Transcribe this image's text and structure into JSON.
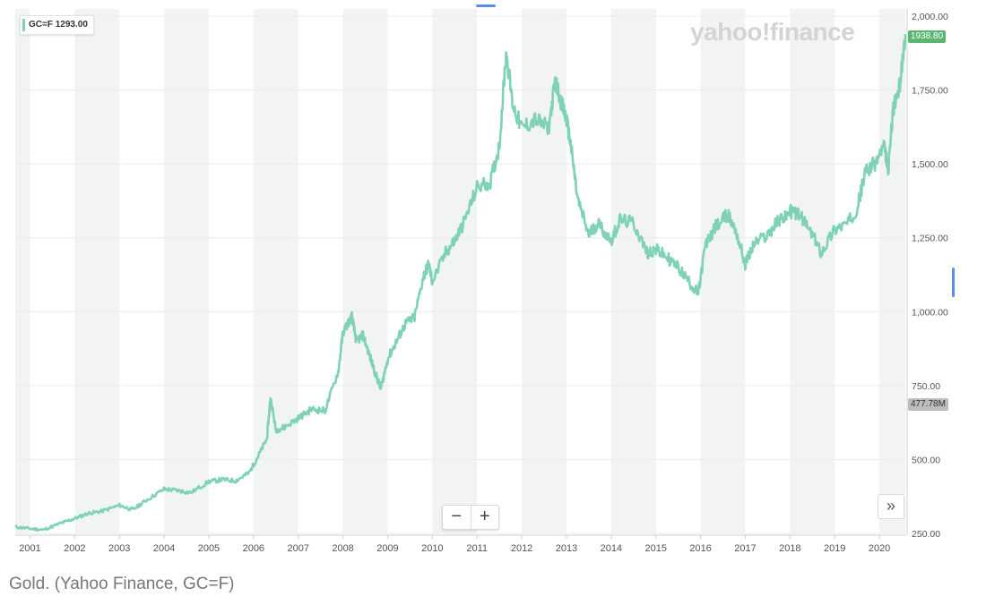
{
  "legend": {
    "symbol": "GC=F",
    "value": "1293.00"
  },
  "brand": "yahoo!finance",
  "last_price": "1938.80",
  "volume_badge": "477.78M",
  "controls": {
    "zoom_out": "−",
    "zoom_in": "+",
    "scroll_right": "»"
  },
  "caption": "Gold. (Yahoo Finance, GC=F)",
  "colors": {
    "line": "#7fd3b3",
    "band": "#f2f3f5",
    "grid": "#ececec",
    "last_price_bg": "#5bb76f"
  },
  "chart_data": {
    "type": "line",
    "title": "",
    "xlabel": "",
    "ylabel": "",
    "x_ticks": [
      "2001",
      "2002",
      "2003",
      "2004",
      "2005",
      "2006",
      "2007",
      "2008",
      "2009",
      "2010",
      "2011",
      "2012",
      "2013",
      "2014",
      "2015",
      "2016",
      "2017",
      "2018",
      "2019",
      "2020"
    ],
    "y_ticks": [
      "250.00",
      "500.00",
      "750.00",
      "1,000.00",
      "1,250.00",
      "1,500.00",
      "1,750.00",
      "2,000.00"
    ],
    "ylim": [
      250,
      2000
    ],
    "xlim": [
      2000.67,
      2020.58
    ],
    "grid": true,
    "alternating_year_bands": true,
    "series": [
      {
        "name": "GC=F",
        "x": [
          2000.67,
          2001.0,
          2001.3,
          2001.7,
          2002.0,
          2002.3,
          2002.6,
          2003.0,
          2003.3,
          2003.6,
          2004.0,
          2004.3,
          2004.6,
          2005.0,
          2005.3,
          2005.6,
          2005.9,
          2006.1,
          2006.3,
          2006.38,
          2006.5,
          2006.7,
          2007.0,
          2007.3,
          2007.6,
          2007.9,
          2008.0,
          2008.2,
          2008.3,
          2008.45,
          2008.6,
          2008.75,
          2008.85,
          2009.0,
          2009.2,
          2009.4,
          2009.6,
          2009.8,
          2009.92,
          2010.0,
          2010.3,
          2010.5,
          2010.7,
          2011.0,
          2011.3,
          2011.5,
          2011.65,
          2011.8,
          2012.0,
          2012.3,
          2012.6,
          2012.75,
          2012.9,
          2013.0,
          2013.1,
          2013.25,
          2013.5,
          2013.7,
          2014.0,
          2014.2,
          2014.5,
          2014.8,
          2015.0,
          2015.2,
          2015.5,
          2015.8,
          2015.95,
          2016.1,
          2016.3,
          2016.6,
          2016.8,
          2017.0,
          2017.2,
          2017.5,
          2017.7,
          2018.0,
          2018.2,
          2018.5,
          2018.7,
          2019.0,
          2019.3,
          2019.5,
          2019.7,
          2019.9,
          2020.1,
          2020.2,
          2020.3,
          2020.45,
          2020.58
        ],
        "values": [
          272,
          266,
          262,
          285,
          300,
          318,
          325,
          345,
          330,
          362,
          400,
          395,
          388,
          425,
          432,
          428,
          455,
          510,
          570,
          710,
          600,
          610,
          640,
          670,
          665,
          800,
          930,
          985,
          900,
          920,
          850,
          780,
          740,
          840,
          900,
          960,
          980,
          1120,
          1160,
          1100,
          1200,
          1240,
          1300,
          1420,
          1440,
          1560,
          1880,
          1700,
          1620,
          1650,
          1620,
          1780,
          1700,
          1650,
          1560,
          1380,
          1260,
          1300,
          1240,
          1310,
          1300,
          1200,
          1210,
          1190,
          1150,
          1090,
          1060,
          1220,
          1280,
          1330,
          1270,
          1160,
          1230,
          1260,
          1300,
          1340,
          1330,
          1260,
          1200,
          1280,
          1300,
          1350,
          1480,
          1500,
          1560,
          1480,
          1680,
          1760,
          1939
        ]
      }
    ]
  }
}
